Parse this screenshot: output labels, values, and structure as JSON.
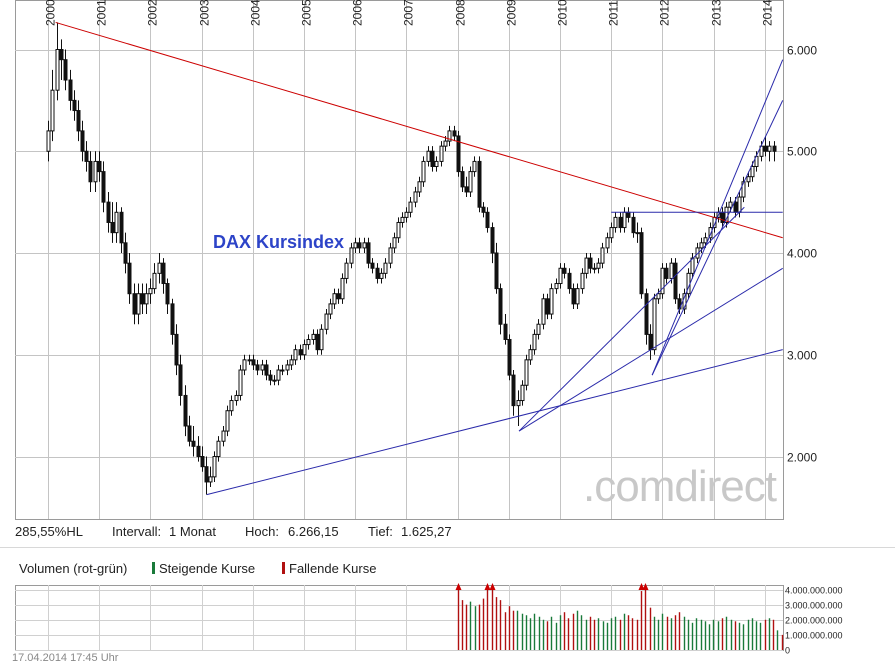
{
  "chart_data": {
    "type": "candlestick",
    "title": "DAX Kursindex",
    "watermark": ".comdirect",
    "x_tick_labels": [
      "2000",
      "2001",
      "2002",
      "2003",
      "2004",
      "2005",
      "2006",
      "2007",
      "2008",
      "2009",
      "2010",
      "2011",
      "2012",
      "2013",
      "2014"
    ],
    "y_tick_labels": [
      "6.000",
      "5.000",
      "4.000",
      "3.000",
      "2.000"
    ],
    "y_ticks": [
      6000,
      5000,
      4000,
      3000,
      2000
    ],
    "ylim": [
      1400,
      6450
    ],
    "xlim": [
      2000.0,
      2014.35
    ],
    "grid": true,
    "series": [
      {
        "x": [
          2000.0,
          2000.08,
          2000.17,
          2000.25,
          2000.33,
          2000.42,
          2000.5,
          2000.58,
          2000.67,
          2000.75,
          2000.83,
          2000.92,
          2001.0,
          2001.08,
          2001.17,
          2001.25,
          2001.33,
          2001.42,
          2001.5,
          2001.58,
          2001.67,
          2001.75,
          2001.83,
          2001.92,
          2002.0,
          2002.08,
          2002.17,
          2002.25,
          2002.33,
          2002.42,
          2002.5,
          2002.58,
          2002.67,
          2002.75,
          2002.83,
          2002.92,
          2003.0,
          2003.08,
          2003.17,
          2003.25,
          2003.33,
          2003.42,
          2003.5,
          2003.58,
          2003.67,
          2003.75,
          2003.83,
          2003.92,
          2004.0,
          2004.08,
          2004.17,
          2004.25,
          2004.33,
          2004.42,
          2004.5,
          2004.58,
          2004.67,
          2004.75,
          2004.83,
          2004.92,
          2005.0,
          2005.08,
          2005.17,
          2005.25,
          2005.33,
          2005.42,
          2005.5,
          2005.58,
          2005.67,
          2005.75,
          2005.83,
          2005.92,
          2006.0,
          2006.08,
          2006.17,
          2006.25,
          2006.33,
          2006.42,
          2006.5,
          2006.58,
          2006.67,
          2006.75,
          2006.83,
          2006.92,
          2007.0,
          2007.08,
          2007.17,
          2007.25,
          2007.33,
          2007.42,
          2007.5,
          2007.58,
          2007.67,
          2007.75,
          2007.83,
          2007.92,
          2008.0,
          2008.08,
          2008.17,
          2008.25,
          2008.33,
          2008.42,
          2008.5,
          2008.58,
          2008.67,
          2008.75,
          2008.83,
          2008.92,
          2009.0,
          2009.08,
          2009.17,
          2009.25,
          2009.33,
          2009.42,
          2009.5,
          2009.58,
          2009.67,
          2009.75,
          2009.83,
          2009.92,
          2010.0,
          2010.08,
          2010.17,
          2010.25,
          2010.33,
          2010.42,
          2010.5,
          2010.58,
          2010.67,
          2010.75,
          2010.83,
          2010.92,
          2011.0,
          2011.08,
          2011.17,
          2011.25,
          2011.33,
          2011.42,
          2011.5,
          2011.58,
          2011.67,
          2011.75,
          2011.83,
          2011.92,
          2012.0,
          2012.08,
          2012.17,
          2012.25,
          2012.33,
          2012.42,
          2012.5,
          2012.58,
          2012.67,
          2012.75,
          2012.83,
          2012.92,
          2013.0,
          2013.08,
          2013.17,
          2013.25,
          2013.33,
          2013.42,
          2013.5,
          2013.58,
          2013.67,
          2013.75,
          2013.83,
          2013.92,
          2014.0,
          2014.08,
          2014.17
        ],
        "close": [
          5200,
          5600,
          6000,
          5900,
          5700,
          5500,
          5400,
          5200,
          5000,
          4900,
          4700,
          4900,
          4800,
          4500,
          4300,
          4200,
          4400,
          4100,
          3900,
          3600,
          3400,
          3600,
          3500,
          3600,
          3650,
          3800,
          3900,
          3700,
          3500,
          3200,
          2900,
          2600,
          2300,
          2150,
          2100,
          2000,
          1900,
          1750,
          1800,
          2000,
          2150,
          2250,
          2450,
          2550,
          2600,
          2850,
          2950,
          2950,
          2900,
          2850,
          2900,
          2800,
          2750,
          2750,
          2850,
          2850,
          2900,
          2950,
          3050,
          3000,
          3100,
          3150,
          3200,
          3050,
          3250,
          3400,
          3500,
          3600,
          3550,
          3750,
          3900,
          4050,
          4100,
          4050,
          4100,
          3900,
          3850,
          3750,
          3800,
          3900,
          4050,
          4150,
          4300,
          4350,
          4400,
          4500,
          4600,
          4700,
          4900,
          5000,
          4850,
          4900,
          5050,
          5100,
          5200,
          5150,
          4800,
          4650,
          4600,
          4800,
          4900,
          4450,
          4400,
          4250,
          4000,
          3650,
          3300,
          3150,
          2800,
          2500,
          2550,
          2700,
          2950,
          3050,
          3200,
          3300,
          3550,
          3400,
          3650,
          3700,
          3850,
          3800,
          3650,
          3500,
          3650,
          3800,
          3950,
          3850,
          3850,
          3900,
          4050,
          4150,
          4250,
          4350,
          4250,
          4400,
          4350,
          4200,
          4200,
          3600,
          3200,
          3050,
          3550,
          3600,
          3850,
          3750,
          3900,
          3550,
          3450,
          3600,
          3800,
          3950,
          4050,
          4100,
          4150,
          4250,
          4350,
          4400,
          4300,
          4450,
          4500,
          4400,
          4550,
          4700,
          4750,
          4850,
          4950,
          5050,
          5000,
          5050,
          5000
        ],
        "open": [
          5000,
          5200,
          5600,
          6000,
          5900,
          5700,
          5500,
          5400,
          5200,
          5000,
          4900,
          4700,
          4900,
          4800,
          4500,
          4300,
          4200,
          4400,
          4100,
          3900,
          3600,
          3400,
          3600,
          3500,
          3600,
          3650,
          3800,
          3900,
          3700,
          3500,
          3200,
          2900,
          2600,
          2300,
          2150,
          2100,
          2000,
          1900,
          1750,
          1800,
          2000,
          2150,
          2250,
          2450,
          2550,
          2600,
          2850,
          2950,
          2950,
          2900,
          2850,
          2900,
          2800,
          2750,
          2750,
          2850,
          2850,
          2900,
          2950,
          3050,
          3000,
          3100,
          3150,
          3200,
          3050,
          3250,
          3400,
          3500,
          3600,
          3550,
          3750,
          3900,
          4050,
          4100,
          4050,
          4100,
          3900,
          3850,
          3750,
          3800,
          3900,
          4050,
          4150,
          4300,
          4350,
          4400,
          4500,
          4600,
          4700,
          4900,
          5000,
          4850,
          4900,
          5050,
          5100,
          5200,
          5150,
          4800,
          4650,
          4600,
          4800,
          4900,
          4450,
          4400,
          4250,
          4000,
          3650,
          3300,
          3150,
          2800,
          2500,
          2550,
          2700,
          2950,
          3050,
          3200,
          3300,
          3550,
          3400,
          3650,
          3700,
          3850,
          3800,
          3650,
          3500,
          3650,
          3800,
          3950,
          3850,
          3850,
          3900,
          4050,
          4150,
          4250,
          4350,
          4250,
          4400,
          4350,
          4200,
          4200,
          3600,
          3200,
          3050,
          3550,
          3600,
          3850,
          3750,
          3900,
          3550,
          3450,
          3600,
          3800,
          3950,
          4050,
          4100,
          4150,
          4250,
          4350,
          4400,
          4300,
          4450,
          4500,
          4400,
          4550,
          4700,
          4750,
          4850,
          4950,
          5050,
          5000,
          5050
        ],
        "high": [
          5300,
          5800,
          6266,
          6100,
          6000,
          5800,
          5600,
          5500,
          5300,
          5100,
          5000,
          5000,
          5000,
          4900,
          4600,
          4500,
          4500,
          4450,
          4200,
          4000,
          3700,
          3700,
          3700,
          3700,
          3750,
          3900,
          4000,
          3950,
          3750,
          3550,
          3300,
          3000,
          2700,
          2400,
          2300,
          2200,
          2100,
          2000,
          1900,
          2050,
          2200,
          2300,
          2500,
          2600,
          2650,
          2900,
          3000,
          3000,
          3000,
          2950,
          2950,
          2950,
          2850,
          2800,
          2900,
          2900,
          2950,
          3000,
          3100,
          3100,
          3150,
          3200,
          3250,
          3250,
          3300,
          3450,
          3550,
          3650,
          3650,
          3800,
          3950,
          4100,
          4150,
          4150,
          4150,
          4150,
          3950,
          3900,
          3850,
          3950,
          4100,
          4200,
          4350,
          4400,
          4450,
          4550,
          4650,
          4750,
          4950,
          5050,
          5050,
          4950,
          5100,
          5150,
          5250,
          5250,
          5200,
          4850,
          4750,
          4850,
          4950,
          4950,
          4500,
          4450,
          4300,
          4100,
          3700,
          3400,
          3200,
          2850,
          2650,
          2750,
          3000,
          3100,
          3250,
          3350,
          3600,
          3600,
          3700,
          3750,
          3900,
          3900,
          3850,
          3700,
          3700,
          3850,
          4000,
          4000,
          3900,
          3950,
          4100,
          4200,
          4300,
          4400,
          4400,
          4450,
          4450,
          4400,
          4300,
          4250,
          3650,
          3300,
          3600,
          3650,
          3900,
          3900,
          3950,
          3950,
          3600,
          3650,
          3850,
          4000,
          4100,
          4150,
          4200,
          4300,
          4400,
          4450,
          4450,
          4500,
          4550,
          4550,
          4600,
          4750,
          4800,
          4900,
          5000,
          5100,
          5150,
          5100,
          5100
        ],
        "low": [
          4900,
          5100,
          5500,
          5700,
          5600,
          5400,
          5300,
          5100,
          4900,
          4800,
          4600,
          4600,
          4700,
          4400,
          4200,
          4100,
          4100,
          4000,
          3800,
          3500,
          3300,
          3300,
          3400,
          3400,
          3500,
          3600,
          3700,
          3600,
          3400,
          3100,
          2800,
          2500,
          2200,
          2100,
          2000,
          1950,
          1850,
          1625,
          1700,
          1750,
          1950,
          2100,
          2200,
          2400,
          2500,
          2550,
          2800,
          2900,
          2850,
          2800,
          2800,
          2750,
          2700,
          2700,
          2700,
          2800,
          2800,
          2850,
          2900,
          2950,
          2950,
          3050,
          3100,
          3000,
          3000,
          3200,
          3350,
          3450,
          3500,
          3500,
          3700,
          3850,
          4000,
          4000,
          4000,
          3850,
          3800,
          3700,
          3700,
          3750,
          3850,
          4000,
          4100,
          4250,
          4300,
          4350,
          4450,
          4550,
          4650,
          4850,
          4800,
          4800,
          4850,
          5000,
          5050,
          5100,
          4750,
          4600,
          4550,
          4550,
          4750,
          4400,
          4350,
          4200,
          3900,
          3600,
          3200,
          3100,
          2750,
          2400,
          2300,
          2500,
          2650,
          2900,
          3000,
          3150,
          3250,
          3350,
          3350,
          3600,
          3650,
          3750,
          3600,
          3450,
          3450,
          3600,
          3750,
          3800,
          3800,
          3800,
          3850,
          4000,
          4100,
          4200,
          4200,
          4200,
          4300,
          4150,
          4100,
          3550,
          3100,
          2950,
          3000,
          3500,
          3550,
          3700,
          3700,
          3500,
          3400,
          3400,
          3550,
          3750,
          3900,
          4000,
          4050,
          4100,
          4200,
          4300,
          4250,
          4250,
          4400,
          4350,
          4350,
          4500,
          4650,
          4700,
          4800,
          4900,
          4950,
          4900,
          4900
        ]
      }
    ],
    "trendlines": [
      {
        "color": "#cc0000",
        "from": [
          2000.15,
          6266
        ],
        "to": [
          2014.35,
          4150
        ]
      },
      {
        "color": "#2a2aaa",
        "from": [
          2003.1,
          1625
        ],
        "to": [
          2014.35,
          3050
        ]
      },
      {
        "color": "#2a2aaa",
        "from": [
          2009.2,
          2250
        ],
        "to": [
          2014.35,
          3850
        ]
      },
      {
        "color": "#2a2aaa",
        "from": [
          2009.2,
          2250
        ],
        "to": [
          2013.6,
          4450
        ]
      },
      {
        "color": "#2a2aaa",
        "from": [
          2011.8,
          2800
        ],
        "to": [
          2014.35,
          5500
        ]
      },
      {
        "color": "#2a2aaa",
        "from": [
          2011.8,
          2800
        ],
        "to": [
          2014.35,
          5900
        ]
      },
      {
        "color": "#2a2aaa",
        "from": [
          2011.0,
          4400
        ],
        "to": [
          2014.35,
          4400
        ]
      }
    ],
    "stats": {
      "range_label": "285,55%HL",
      "interval_label": "Intervall:",
      "interval": "1 Monat",
      "high_label": "Hoch:",
      "high": "6.266,15",
      "low_label": "Tief:",
      "low": "1.625,27"
    },
    "volume": {
      "title": "Volumen (rot-grün)",
      "legend": [
        {
          "name": "Steigende Kurse",
          "color": "#1a7a3a"
        },
        {
          "name": "Fallende Kurse",
          "color": "#b01010"
        }
      ],
      "y_tick_labels": [
        "4.000.000.000",
        "3.000.000.000",
        "2.000.000.000",
        "1.000.000.000",
        "0"
      ],
      "y_ticks": [
        4000000000,
        3000000000,
        2000000000,
        1000000000,
        0
      ],
      "ylim": [
        0,
        4300000000
      ],
      "start_x": 2008.0,
      "step": 0.0833,
      "values": [
        4000000000,
        3300000000,
        3000000000,
        3200000000,
        2900000000,
        3000000000,
        3400000000,
        4000000000,
        4000000000,
        3500000000,
        3300000000,
        2500000000,
        2900000000,
        2600000000,
        2600000000,
        2400000000,
        2300000000,
        2100000000,
        2400000000,
        2200000000,
        2000000000,
        1900000000,
        2200000000,
        1800000000,
        2300000000,
        2500000000,
        2100000000,
        2400000000,
        2600000000,
        2300000000,
        2000000000,
        2200000000,
        2000000000,
        2100000000,
        1900000000,
        1800000000,
        2100000000,
        2200000000,
        2000000000,
        2400000000,
        2300000000,
        2100000000,
        2000000000,
        3900000000,
        4000000000,
        2800000000,
        2200000000,
        2000000000,
        2400000000,
        2200000000,
        2100000000,
        2300000000,
        2500000000,
        2200000000,
        2000000000,
        1800000000,
        2100000000,
        2000000000,
        1900000000,
        1700000000,
        2000000000,
        1900000000,
        2100000000,
        2200000000,
        2000000000,
        1900000000,
        1800000000,
        1700000000,
        2000000000,
        2100000000,
        1900000000,
        1800000000,
        2000000000,
        2100000000,
        2000000000,
        1300000000,
        1000000000
      ],
      "directions": [
        "down",
        "down",
        "down",
        "up",
        "up",
        "down",
        "down",
        "down",
        "down",
        "down",
        "down",
        "down",
        "down",
        "down",
        "up",
        "up",
        "up",
        "up",
        "up",
        "up",
        "up",
        "down",
        "up",
        "up",
        "up",
        "down",
        "down",
        "down",
        "up",
        "up",
        "up",
        "down",
        "down",
        "up",
        "up",
        "up",
        "up",
        "up",
        "down",
        "up",
        "down",
        "down",
        "down",
        "down",
        "down",
        "down",
        "up",
        "up",
        "up",
        "down",
        "up",
        "down",
        "down",
        "up",
        "up",
        "up",
        "up",
        "up",
        "up",
        "up",
        "up",
        "up",
        "down",
        "up",
        "up",
        "down",
        "up",
        "up",
        "up",
        "up",
        "up",
        "up",
        "down",
        "up",
        "down",
        "up",
        "down"
      ]
    }
  },
  "timestamp": "17.04.2014 17:45 Uhr"
}
